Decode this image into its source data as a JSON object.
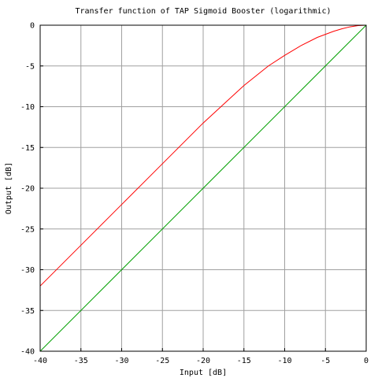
{
  "chart_data": {
    "type": "line",
    "title": "Transfer function of TAP Sigmoid Booster (logarithmic)",
    "xlabel": "Input [dB]",
    "ylabel": "Output [dB]",
    "xlim": [
      -40,
      0
    ],
    "ylim": [
      -40,
      0
    ],
    "xticks": [
      -40,
      -35,
      -30,
      -25,
      -20,
      -15,
      -10,
      -5,
      0
    ],
    "yticks": [
      -40,
      -35,
      -30,
      -25,
      -20,
      -15,
      -10,
      -5,
      0
    ],
    "grid": true,
    "legend": "none",
    "series": [
      {
        "color": "#ff0000",
        "x": [
          -40,
          -35,
          -30,
          -25,
          -20,
          -15,
          -12,
          -10,
          -8,
          -6,
          -4,
          -3,
          -2,
          -1,
          0
        ],
        "y": [
          -32,
          -27,
          -22,
          -17,
          -12,
          -7.4,
          -5.0,
          -3.7,
          -2.5,
          -1.5,
          -0.75,
          -0.45,
          -0.2,
          -0.05,
          0
        ]
      },
      {
        "color": "#00a000",
        "x": [
          -40,
          0
        ],
        "y": [
          -40,
          0
        ]
      }
    ]
  }
}
